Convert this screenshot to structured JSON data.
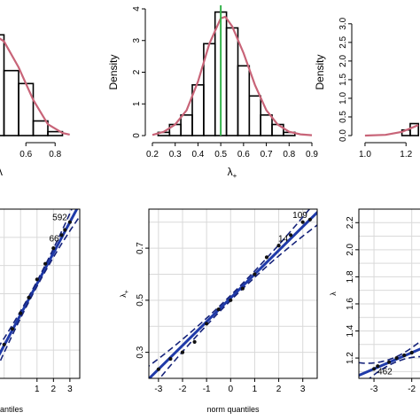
{
  "colors": {
    "histogram_stroke": "#000000",
    "density_curve": "#c86478",
    "reference_line": "#33b24a",
    "qq_line": "#1f3aa9",
    "qq_band": "#16237a",
    "points": "#111111",
    "grid": "#d9d9d9",
    "frame": "#000000"
  },
  "chart_data": [
    {
      "id": "hist_left",
      "type": "bar",
      "subtype": "histogram",
      "x_ticks": [
        "0.6",
        "0.8"
      ],
      "bins": [
        {
          "x0": 0.35,
          "x1": 0.45,
          "density": 3.1
        },
        {
          "x0": 0.45,
          "x1": 0.55,
          "density": 2.0
        },
        {
          "x0": 0.55,
          "x1": 0.65,
          "density": 1.6
        },
        {
          "x0": 0.65,
          "x1": 0.75,
          "density": 0.45
        },
        {
          "x0": 0.75,
          "x1": 0.85,
          "density": 0.12
        }
      ],
      "curve": [
        [
          0.35,
          3.2
        ],
        [
          0.45,
          2.9
        ],
        [
          0.55,
          2.1
        ],
        [
          0.65,
          1.1
        ],
        [
          0.75,
          0.35
        ],
        [
          0.85,
          0.08
        ],
        [
          0.9,
          0.03
        ]
      ],
      "xlim": [
        0.35,
        0.92
      ],
      "ylim": [
        0,
        3.9
      ],
      "xlabel_partial": "λ"
    },
    {
      "id": "hist_middle",
      "type": "bar",
      "subtype": "histogram",
      "ylabel": "Density",
      "xlabel_main": "λ",
      "xlabel_sub": "+",
      "x_ticks": [
        "0.2",
        "0.3",
        "0.4",
        "0.5",
        "0.6",
        "0.7",
        "0.8",
        "0.9"
      ],
      "y_ticks": [
        "0",
        "1",
        "2",
        "3",
        "4"
      ],
      "bins": [
        {
          "x0": 0.225,
          "x1": 0.275,
          "density": 0.1
        },
        {
          "x0": 0.275,
          "x1": 0.325,
          "density": 0.35
        },
        {
          "x0": 0.325,
          "x1": 0.375,
          "density": 0.65
        },
        {
          "x0": 0.375,
          "x1": 0.425,
          "density": 1.6
        },
        {
          "x0": 0.425,
          "x1": 0.475,
          "density": 2.9
        },
        {
          "x0": 0.475,
          "x1": 0.525,
          "density": 3.9
        },
        {
          "x0": 0.525,
          "x1": 0.575,
          "density": 3.4
        },
        {
          "x0": 0.575,
          "x1": 0.625,
          "density": 2.2
        },
        {
          "x0": 0.625,
          "x1": 0.675,
          "density": 1.25
        },
        {
          "x0": 0.675,
          "x1": 0.725,
          "density": 0.65
        },
        {
          "x0": 0.725,
          "x1": 0.775,
          "density": 0.35
        },
        {
          "x0": 0.775,
          "x1": 0.825,
          "density": 0.1
        }
      ],
      "curve": [
        [
          0.2,
          0.02
        ],
        [
          0.25,
          0.12
        ],
        [
          0.3,
          0.35
        ],
        [
          0.35,
          0.8
        ],
        [
          0.4,
          1.7
        ],
        [
          0.45,
          2.9
        ],
        [
          0.5,
          3.7
        ],
        [
          0.52,
          3.75
        ],
        [
          0.55,
          3.45
        ],
        [
          0.6,
          2.6
        ],
        [
          0.65,
          1.6
        ],
        [
          0.7,
          0.8
        ],
        [
          0.75,
          0.35
        ],
        [
          0.8,
          0.12
        ],
        [
          0.85,
          0.04
        ],
        [
          0.9,
          0.01
        ]
      ],
      "reference_x": 0.5,
      "xlim": [
        0.2,
        0.9
      ],
      "ylim": [
        0,
        4
      ]
    },
    {
      "id": "hist_right",
      "type": "bar",
      "subtype": "histogram",
      "ylabel": "Density",
      "x_ticks": [
        "1.0",
        "1.2"
      ],
      "y_ticks": [
        "0.0",
        "0.5",
        "1.0",
        "1.5",
        "2.0",
        "2.5",
        "3.0"
      ],
      "bins": [
        {
          "x0": 1.18,
          "x1": 1.22,
          "density": 0.15
        },
        {
          "x0": 1.22,
          "x1": 1.26,
          "density": 0.32
        }
      ],
      "curve": [
        [
          1.0,
          0.0
        ],
        [
          1.1,
          0.02
        ],
        [
          1.18,
          0.1
        ],
        [
          1.26,
          0.28
        ]
      ],
      "xlim": [
        0.97,
        1.32
      ],
      "ylim": [
        0,
        3.4
      ]
    },
    {
      "id": "qq_left",
      "type": "scatter",
      "subtype": "qqplot",
      "x_ticks": [
        "1",
        "2",
        "3"
      ],
      "xlabel_partial": "quantiles",
      "point_labels": [
        "592",
        "66"
      ],
      "points": [
        [
          -1.9,
          0.25
        ],
        [
          -1.5,
          0.3
        ],
        [
          -1.0,
          0.36
        ],
        [
          -0.5,
          0.42
        ],
        [
          0.0,
          0.48
        ],
        [
          0.5,
          0.54
        ],
        [
          1.0,
          0.61
        ],
        [
          1.5,
          0.67
        ],
        [
          2.0,
          0.73
        ],
        [
          2.5,
          0.78
        ],
        [
          2.7,
          0.8
        ],
        [
          3.0,
          0.83
        ]
      ],
      "xlim": [
        -1.9,
        3.6
      ],
      "ylim": [
        0.23,
        0.88
      ]
    },
    {
      "id": "qq_middle",
      "type": "scatter",
      "subtype": "qqplot",
      "xlabel": "norm quantiles",
      "ylabel_main": "λ",
      "ylabel_sub": "+",
      "x_ticks": [
        "-3",
        "-2",
        "-1",
        "0",
        "1",
        "2",
        "3"
      ],
      "y_ticks": [
        "0.3",
        "0.5",
        "0.7"
      ],
      "point_labels": [
        "109",
        "14"
      ],
      "points": [
        [
          -3.0,
          0.235
        ],
        [
          -2.5,
          0.275
        ],
        [
          -2.0,
          0.3
        ],
        [
          -1.5,
          0.34
        ],
        [
          -1.0,
          0.41
        ],
        [
          -0.5,
          0.465
        ],
        [
          0.0,
          0.5
        ],
        [
          0.5,
          0.545
        ],
        [
          1.0,
          0.6
        ],
        [
          1.5,
          0.665
        ],
        [
          2.0,
          0.71
        ],
        [
          2.5,
          0.75
        ],
        [
          3.0,
          0.8
        ],
        [
          3.3,
          0.81
        ]
      ],
      "xlim": [
        -3.4,
        3.6
      ],
      "ylim": [
        0.2,
        0.85
      ]
    },
    {
      "id": "qq_right",
      "type": "scatter",
      "subtype": "qqplot",
      "ylabel": "λ",
      "x_ticks": [
        "-3",
        "-2"
      ],
      "y_ticks": [
        "1.2",
        "1.4",
        "1.6",
        "1.8",
        "2.0",
        "2.2"
      ],
      "point_labels": [
        "462"
      ],
      "points": [
        [
          -3.0,
          1.12
        ],
        [
          -2.9,
          1.14
        ],
        [
          -2.6,
          1.17
        ],
        [
          -2.4,
          1.2
        ],
        [
          -2.2,
          1.22
        ],
        [
          -2.0,
          1.24
        ]
      ],
      "xlim": [
        -3.4,
        -1.5
      ],
      "ylim": [
        1.05,
        2.3
      ]
    }
  ]
}
